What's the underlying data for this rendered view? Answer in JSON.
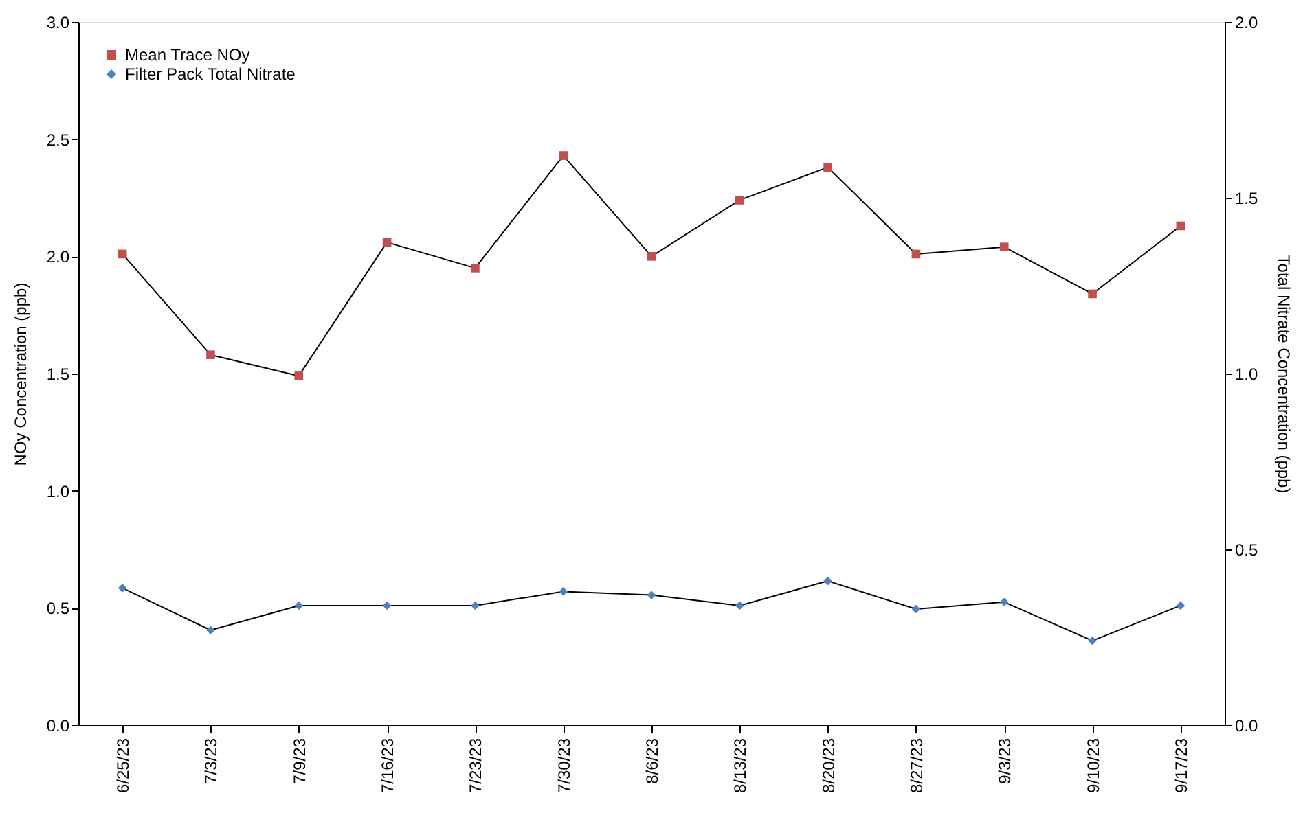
{
  "chart_data": {
    "type": "line",
    "categories": [
      "6/25/23",
      "7/3/23",
      "7/9/23",
      "7/16/23",
      "7/23/23",
      "7/30/23",
      "8/6/23",
      "8/13/23",
      "8/20/23",
      "8/27/23",
      "9/3/23",
      "9/10/23",
      "9/17/23"
    ],
    "ylabel": "NOy Concentration (ppb)",
    "y2label": "Total Nitrate Concentration (ppb)",
    "ylim": [
      0,
      3.0
    ],
    "yticks": [
      {
        "value": 0,
        "label": "0.0"
      },
      {
        "value": 0.5,
        "label": "0.5"
      },
      {
        "value": 1,
        "label": "1.0"
      },
      {
        "value": 1.5,
        "label": "1.5"
      },
      {
        "value": 2,
        "label": "2.0"
      },
      {
        "value": 2.5,
        "label": "2.5"
      },
      {
        "value": 3,
        "label": "3.0"
      }
    ],
    "y2lim": [
      0,
      2.0
    ],
    "y2ticks": [
      {
        "value": 0,
        "label": "0.0"
      },
      {
        "value": 0.5,
        "label": "0.5"
      },
      {
        "value": 1,
        "label": "1.0"
      },
      {
        "value": 1.5,
        "label": "1.5"
      },
      {
        "value": 2,
        "label": "2.0"
      }
    ],
    "series": [
      {
        "name": "Mean Trace NOy",
        "color": "#c0504d",
        "marker": "square",
        "values": [
          2.01,
          1.58,
          1.49,
          2.06,
          1.95,
          2.43,
          2.0,
          2.24,
          2.38,
          2.01,
          2.04,
          1.84,
          2.13
        ]
      },
      {
        "name": "Filter Pack Total Nitrate",
        "color": "#4f81bd",
        "marker": "diamond",
        "axis": "y2",
        "values": [
          0.39,
          0.27,
          0.34,
          0.34,
          0.34,
          0.38,
          0.37,
          0.34,
          0.41,
          0.33,
          0.35,
          0.24,
          0.34
        ]
      }
    ],
    "grid": false,
    "legend": "top left",
    "line_style": "solid"
  }
}
